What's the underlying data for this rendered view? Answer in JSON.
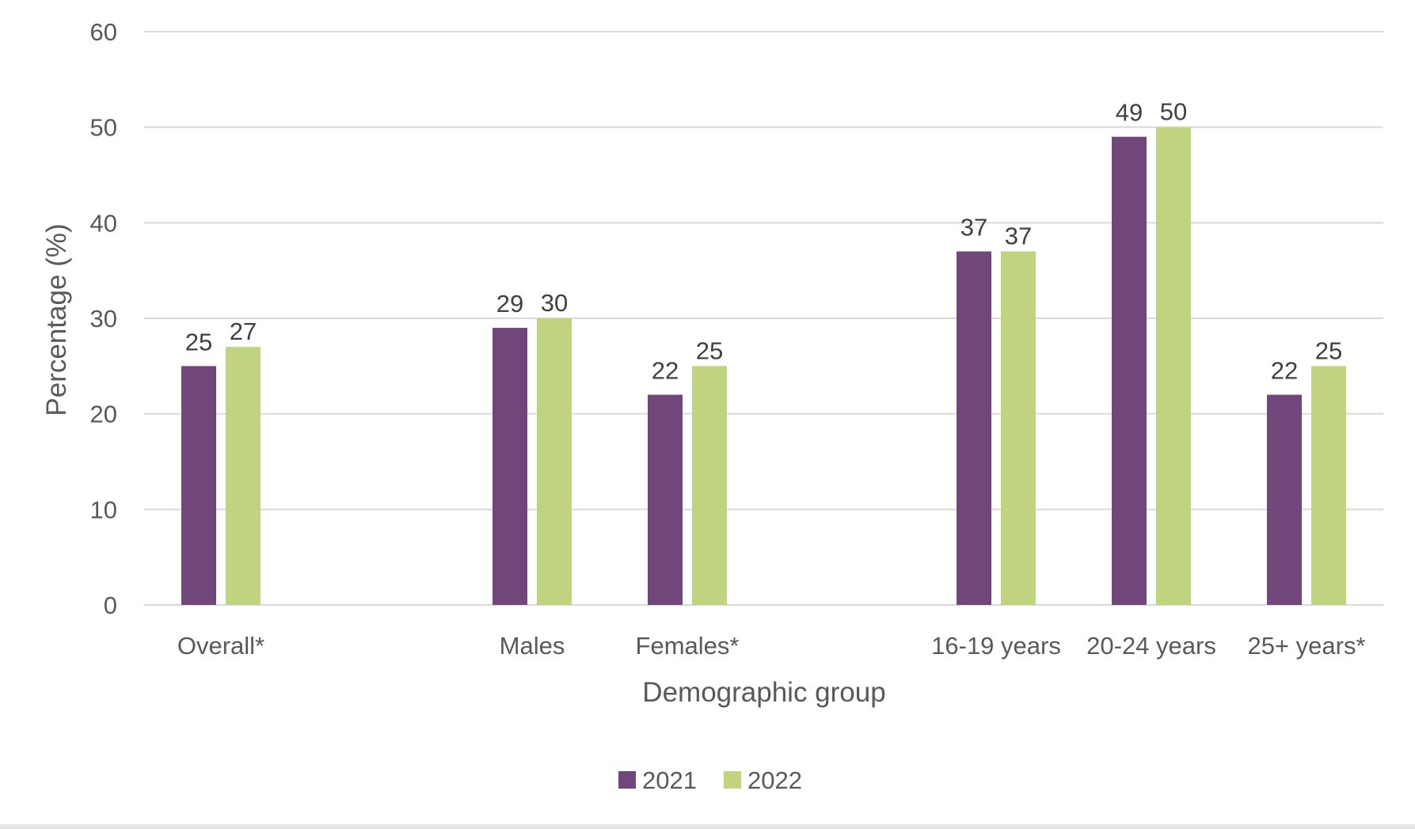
{
  "chart_data": {
    "type": "bar",
    "categories": [
      "Overall*",
      "Males",
      "Females*",
      "16-19 years",
      "20-24 years",
      "25+ years*"
    ],
    "series": [
      {
        "name": "2021",
        "values": [
          25,
          29,
          22,
          37,
          49,
          22
        ],
        "color": "#71467a"
      },
      {
        "name": "2022",
        "values": [
          27,
          30,
          25,
          37,
          50,
          25
        ],
        "color": "#c0d37e"
      }
    ],
    "title": "",
    "xlabel": "Demographic group",
    "ylabel": "Percentage (%)",
    "ylim": [
      0,
      60
    ],
    "yticks": [
      0,
      10,
      20,
      30,
      40,
      50,
      60
    ],
    "grid": true,
    "legend": "bottom-center"
  }
}
